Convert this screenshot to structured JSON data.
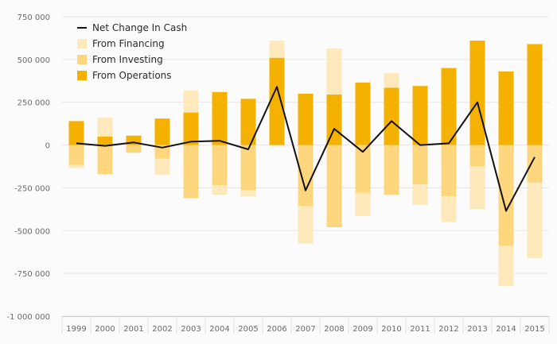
{
  "chart_data": {
    "type": "bar",
    "subtype": "stacked-bar-with-line",
    "categories": [
      "1999",
      "2000",
      "2001",
      "2002",
      "2003",
      "2004",
      "2005",
      "2006",
      "2007",
      "2008",
      "2009",
      "2010",
      "2011",
      "2012",
      "2013",
      "2014",
      "2015"
    ],
    "series": [
      {
        "name": "From Operations",
        "type": "bar",
        "color": "#f5b100",
        "values": [
          140000,
          50000,
          55000,
          155000,
          190000,
          310000,
          270000,
          510000,
          300000,
          295000,
          365000,
          335000,
          345000,
          450000,
          610000,
          430000,
          590000
        ]
      },
      {
        "name": "From Investing",
        "type": "bar",
        "color": "#fdd67e",
        "values": [
          -115000,
          -170000,
          -45000,
          -80000,
          -310000,
          -235000,
          -265000,
          0,
          -355000,
          -480000,
          -280000,
          -290000,
          -230000,
          -300000,
          -125000,
          -590000,
          -220000
        ]
      },
      {
        "name": "From Financing",
        "type": "bar",
        "color": "#fee9bd",
        "values": [
          -20000,
          110000,
          0,
          -95000,
          130000,
          -55000,
          -35000,
          100000,
          -220000,
          270000,
          -135000,
          85000,
          -120000,
          -150000,
          -250000,
          -235000,
          -440000
        ]
      },
      {
        "name": "Net Change In Cash",
        "type": "line",
        "color": "#111111",
        "values": [
          10000,
          -5000,
          15000,
          -15000,
          20000,
          25000,
          -25000,
          340000,
          -265000,
          95000,
          -40000,
          140000,
          0,
          10000,
          250000,
          -385000,
          -70000
        ]
      }
    ],
    "legend": [
      "Net Change In Cash",
      "From Financing",
      "From Investing",
      "From Operations"
    ],
    "legend_position": "top-left",
    "ylim": [
      -1000000,
      750000
    ],
    "yticks": [
      750000,
      500000,
      250000,
      0,
      -250000,
      -500000,
      -750000,
      -1000000
    ],
    "ytick_labels": [
      "750 000",
      "500 000",
      "250 000",
      "0",
      "-250 000",
      "-500 000",
      "-750 000",
      "-1 000 000"
    ],
    "grid": true
  }
}
